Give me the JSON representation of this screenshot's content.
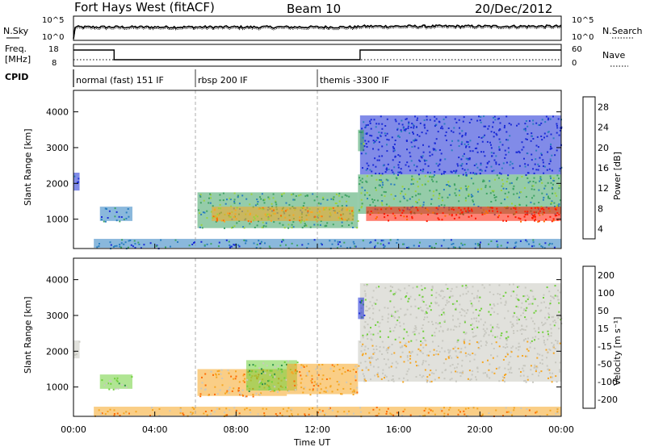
{
  "header": {
    "station": "Fort Hays West (fitACF)",
    "beam": "Beam 10",
    "date": "20/Dec/2012"
  },
  "top_panels": {
    "nsky_label": "N.Sky",
    "nsearch_label": "N.Search",
    "noise_ticks": [
      "10^5",
      "10^0"
    ],
    "freq_label_1": "Freq.",
    "freq_label_2": "[MHz]",
    "freq_ticks": [
      "18",
      "8"
    ],
    "nave_label": "Nave",
    "nave_ticks": [
      "60",
      "0"
    ],
    "cpid_label": "CPID",
    "cpid_segments": [
      {
        "start": 0,
        "end": 6,
        "label": "normal (fast) 151 IF"
      },
      {
        "start": 6,
        "end": 12,
        "label": "rbsp 200 IF"
      },
      {
        "start": 12,
        "end": 24,
        "label": "themis -3300 IF"
      }
    ],
    "freq_series": [
      {
        "t": 0,
        "mhz": 16.5
      },
      {
        "t": 2.0,
        "mhz": 16.5
      },
      {
        "t": 2.0,
        "mhz": 10.5
      },
      {
        "t": 14.1,
        "mhz": 10.5
      },
      {
        "t": 14.1,
        "mhz": 16.5
      },
      {
        "t": 24,
        "mhz": 16.5
      }
    ]
  },
  "chart_data": [
    {
      "type": "heatmap",
      "title": "",
      "xlabel": "",
      "ylabel": "Slant Range [km]",
      "xlim": [
        0,
        24
      ],
      "ylim": [
        180,
        4600
      ],
      "yticks": [
        "1000",
        "2000",
        "3000",
        "4000"
      ],
      "colorbar": {
        "label": "Power [dB]",
        "ticks": [
          "4",
          "8",
          "12",
          "16",
          "20",
          "24",
          "28"
        ],
        "colors": [
          "#1a2bd6",
          "#2a7ec0",
          "#3ea363",
          "#9bd23c",
          "#f5a623",
          "#ff6a00",
          "#ff1a00"
        ]
      },
      "regions": [
        {
          "t0": 0.0,
          "t1": 0.3,
          "r0": 1800,
          "r1": 2300,
          "c": 0
        },
        {
          "t0": 1.3,
          "t1": 2.9,
          "r0": 950,
          "r1": 1350,
          "c": 1
        },
        {
          "t0": 6.1,
          "t1": 14.0,
          "r0": 750,
          "r1": 1750,
          "c": 2
        },
        {
          "t0": 6.8,
          "t1": 13.8,
          "r0": 950,
          "r1": 1350,
          "c": 4
        },
        {
          "t0": 14.0,
          "t1": 24.0,
          "r0": 1150,
          "r1": 2250,
          "c": 2
        },
        {
          "t0": 14.4,
          "t1": 24.0,
          "r0": 950,
          "r1": 1350,
          "c": 6
        },
        {
          "t0": 14.1,
          "t1": 24.0,
          "r0": 2250,
          "r1": 3900,
          "c": 0
        },
        {
          "t0": 14.0,
          "t1": 14.3,
          "r0": 2900,
          "r1": 3500,
          "c": 2
        },
        {
          "t0": 1.0,
          "t1": 24.0,
          "r0": 200,
          "r1": 450,
          "c": 1
        }
      ]
    },
    {
      "type": "heatmap",
      "title": "",
      "xlabel": "Time UT",
      "ylabel": "Slant Range [km]",
      "xlim": [
        0,
        24
      ],
      "ylim": [
        180,
        4600
      ],
      "xticks": [
        "00:00",
        "04:00",
        "08:00",
        "12:00",
        "16:00",
        "20:00",
        "00:00"
      ],
      "yticks": [
        "1000",
        "2000",
        "3000",
        "4000"
      ],
      "colorbar": {
        "label": "Velocity [m s⁻¹]",
        "ticks": [
          "-200",
          "-100",
          "-50",
          "-15",
          "15",
          "50",
          "100",
          "200"
        ],
        "colors": [
          "#ff1a00",
          "#ff6a00",
          "#f5a623",
          "#c8c8c0",
          "#c8c8c0",
          "#6fcf3a",
          "#2f8f4a",
          "#1a2bd6"
        ]
      },
      "regions": [
        {
          "t0": 0.0,
          "t1": 0.3,
          "r0": 1800,
          "r1": 2300,
          "c": 3
        },
        {
          "t0": 1.3,
          "t1": 2.9,
          "r0": 950,
          "r1": 1350,
          "c": 5
        },
        {
          "t0": 6.1,
          "t1": 10.5,
          "r0": 750,
          "r1": 1500,
          "c": 2
        },
        {
          "t0": 8.5,
          "t1": 11.0,
          "r0": 900,
          "r1": 1750,
          "c": 5
        },
        {
          "t0": 10.5,
          "t1": 14.0,
          "r0": 800,
          "r1": 1650,
          "c": 2
        },
        {
          "t0": 14.0,
          "t1": 24.0,
          "r0": 1150,
          "r1": 2300,
          "c": 3
        },
        {
          "t0": 14.1,
          "t1": 24.0,
          "r0": 2300,
          "r1": 3900,
          "c": 4
        },
        {
          "t0": 14.0,
          "t1": 14.3,
          "r0": 2900,
          "r1": 3500,
          "c": 7
        },
        {
          "t0": 1.0,
          "t1": 24.0,
          "r0": 200,
          "r1": 450,
          "c": 2
        }
      ]
    }
  ]
}
